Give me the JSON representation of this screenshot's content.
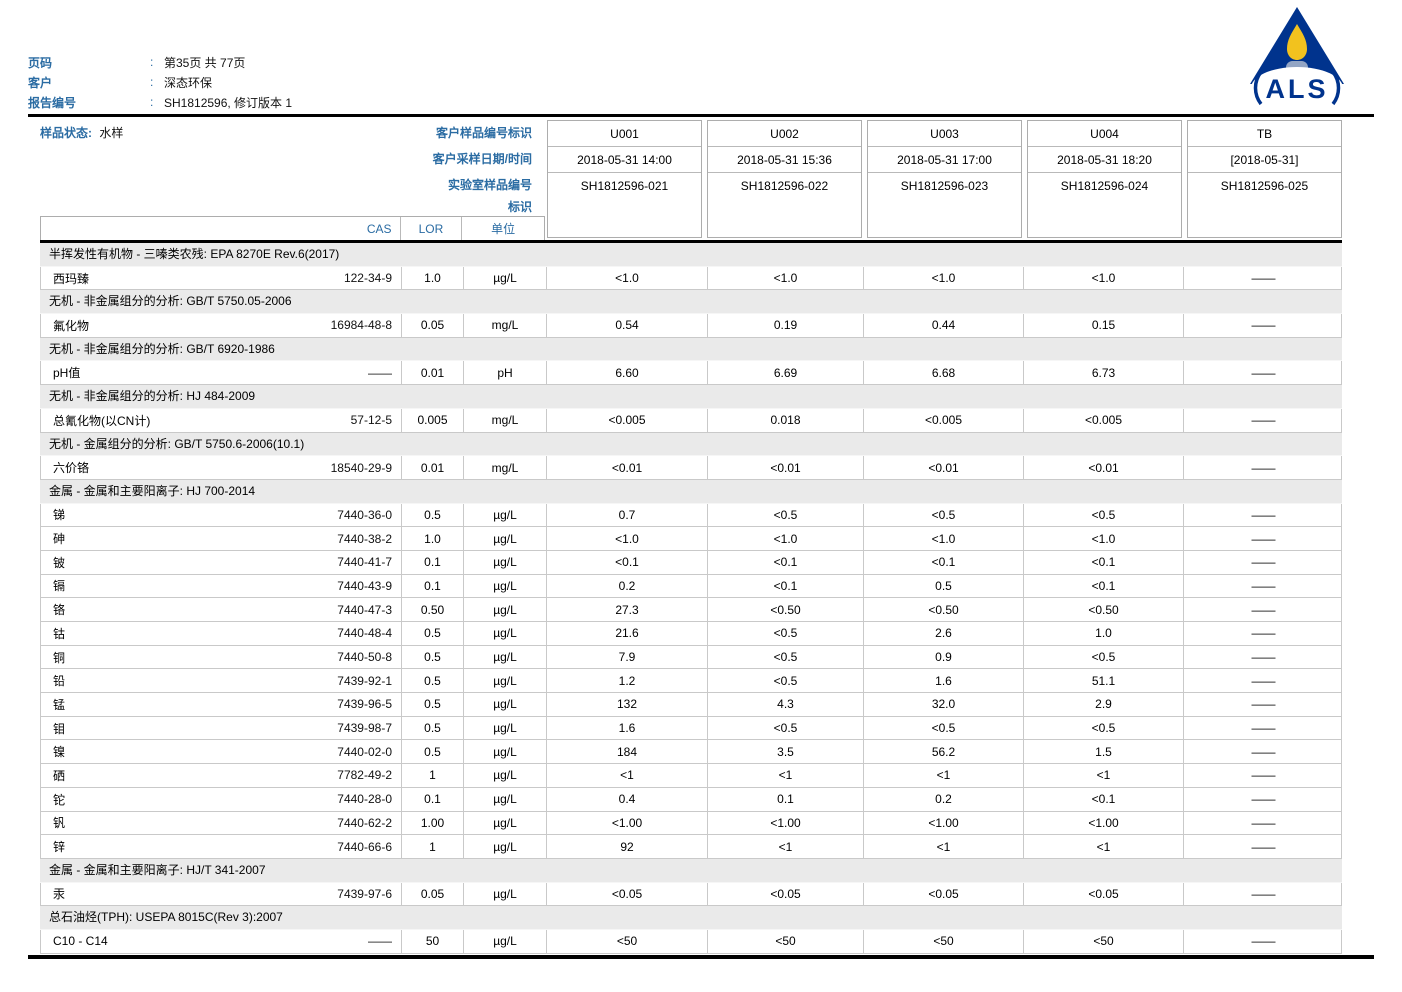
{
  "page_header": {
    "colon": ":",
    "rows": [
      {
        "label": "页码",
        "value": "第35页 共 77页"
      },
      {
        "label": "客户",
        "value": "深态环保"
      },
      {
        "label": "报告编号",
        "value": "SH1812596, 修订版本 1"
      }
    ],
    "logo_text": "ALS"
  },
  "sample_header": {
    "status_label": "样品状态:",
    "status_value": "水样",
    "row_labels": [
      "客户样品编号标识",
      "客户采样日期/时间",
      "实验室样品编号",
      "标识"
    ],
    "columns": [
      {
        "id": "U001",
        "datetime": "2018-05-31 14:00",
        "lab_id": "SH1812596-021"
      },
      {
        "id": "U002",
        "datetime": "2018-05-31 15:36",
        "lab_id": "SH1812596-022"
      },
      {
        "id": "U003",
        "datetime": "2018-05-31 17:00",
        "lab_id": "SH1812596-023"
      },
      {
        "id": "U004",
        "datetime": "2018-05-31 18:20",
        "lab_id": "SH1812596-024"
      },
      {
        "id": "TB",
        "datetime": "[2018-05-31]",
        "lab_id": "SH1812596-025"
      }
    ],
    "col_headers": {
      "cas": "CAS",
      "lor": "LOR",
      "unit": "单位"
    }
  },
  "results": {
    "sections": [
      {
        "title": "半挥发性有机物 - 三嗪类农残: EPA 8270E Rev.6(2017)",
        "rows": [
          {
            "name": "西玛臻",
            "cas": "122-34-9",
            "lor": "1.0",
            "unit": "µg/L",
            "values": [
              "<1.0",
              "<1.0",
              "<1.0",
              "<1.0",
              "——"
            ]
          }
        ]
      },
      {
        "title": "无机 - 非金属组分的分析: GB/T 5750.05-2006",
        "rows": [
          {
            "name": "氟化物",
            "cas": "16984-48-8",
            "lor": "0.05",
            "unit": "mg/L",
            "values": [
              "0.54",
              "0.19",
              "0.44",
              "0.15",
              "——"
            ]
          }
        ]
      },
      {
        "title": "无机 - 非金属组分的分析: GB/T 6920-1986",
        "rows": [
          {
            "name": "pH值",
            "cas": "——",
            "lor": "0.01",
            "unit": "pH",
            "values": [
              "6.60",
              "6.69",
              "6.68",
              "6.73",
              "——"
            ]
          }
        ]
      },
      {
        "title": "无机 - 非金属组分的分析: HJ 484-2009",
        "rows": [
          {
            "name": "总氰化物(以CN计)",
            "cas": "57-12-5",
            "lor": "0.005",
            "unit": "mg/L",
            "values": [
              "<0.005",
              "0.018",
              "<0.005",
              "<0.005",
              "——"
            ]
          }
        ]
      },
      {
        "title": "无机 - 金属组分的分析: GB/T 5750.6-2006(10.1)",
        "rows": [
          {
            "name": "六价铬",
            "cas": "18540-29-9",
            "lor": "0.01",
            "unit": "mg/L",
            "values": [
              "<0.01",
              "<0.01",
              "<0.01",
              "<0.01",
              "——"
            ]
          }
        ]
      },
      {
        "title": "金属 - 金属和主要阳离子: HJ 700-2014",
        "rows": [
          {
            "name": "锑",
            "cas": "7440-36-0",
            "lor": "0.5",
            "unit": "µg/L",
            "values": [
              "0.7",
              "<0.5",
              "<0.5",
              "<0.5",
              "——"
            ]
          },
          {
            "name": "砷",
            "cas": "7440-38-2",
            "lor": "1.0",
            "unit": "µg/L",
            "values": [
              "<1.0",
              "<1.0",
              "<1.0",
              "<1.0",
              "——"
            ]
          },
          {
            "name": "铍",
            "cas": "7440-41-7",
            "lor": "0.1",
            "unit": "µg/L",
            "values": [
              "<0.1",
              "<0.1",
              "<0.1",
              "<0.1",
              "——"
            ]
          },
          {
            "name": "镉",
            "cas": "7440-43-9",
            "lor": "0.1",
            "unit": "µg/L",
            "values": [
              "0.2",
              "<0.1",
              "0.5",
              "<0.1",
              "——"
            ]
          },
          {
            "name": "铬",
            "cas": "7440-47-3",
            "lor": "0.50",
            "unit": "µg/L",
            "values": [
              "27.3",
              "<0.50",
              "<0.50",
              "<0.50",
              "——"
            ]
          },
          {
            "name": "钴",
            "cas": "7440-48-4",
            "lor": "0.5",
            "unit": "µg/L",
            "values": [
              "21.6",
              "<0.5",
              "2.6",
              "1.0",
              "——"
            ]
          },
          {
            "name": "铜",
            "cas": "7440-50-8",
            "lor": "0.5",
            "unit": "µg/L",
            "values": [
              "7.9",
              "<0.5",
              "0.9",
              "<0.5",
              "——"
            ]
          },
          {
            "name": "铅",
            "cas": "7439-92-1",
            "lor": "0.5",
            "unit": "µg/L",
            "values": [
              "1.2",
              "<0.5",
              "1.6",
              "51.1",
              "——"
            ]
          },
          {
            "name": "锰",
            "cas": "7439-96-5",
            "lor": "0.5",
            "unit": "µg/L",
            "values": [
              "132",
              "4.3",
              "32.0",
              "2.9",
              "——"
            ]
          },
          {
            "name": "钼",
            "cas": "7439-98-7",
            "lor": "0.5",
            "unit": "µg/L",
            "values": [
              "1.6",
              "<0.5",
              "<0.5",
              "<0.5",
              "——"
            ]
          },
          {
            "name": "镍",
            "cas": "7440-02-0",
            "lor": "0.5",
            "unit": "µg/L",
            "values": [
              "184",
              "3.5",
              "56.2",
              "1.5",
              "——"
            ]
          },
          {
            "name": "硒",
            "cas": "7782-49-2",
            "lor": "1",
            "unit": "µg/L",
            "values": [
              "<1",
              "<1",
              "<1",
              "<1",
              "——"
            ]
          },
          {
            "name": "铊",
            "cas": "7440-28-0",
            "lor": "0.1",
            "unit": "µg/L",
            "values": [
              "0.4",
              "0.1",
              "0.2",
              "<0.1",
              "——"
            ]
          },
          {
            "name": "钒",
            "cas": "7440-62-2",
            "lor": "1.00",
            "unit": "µg/L",
            "values": [
              "<1.00",
              "<1.00",
              "<1.00",
              "<1.00",
              "——"
            ]
          },
          {
            "name": "锌",
            "cas": "7440-66-6",
            "lor": "1",
            "unit": "µg/L",
            "values": [
              "92",
              "<1",
              "<1",
              "<1",
              "——"
            ]
          }
        ]
      },
      {
        "title": "金属 - 金属和主要阳离子: HJ/T 341-2007",
        "rows": [
          {
            "name": "汞",
            "cas": "7439-97-6",
            "lor": "0.05",
            "unit": "µg/L",
            "values": [
              "<0.05",
              "<0.05",
              "<0.05",
              "<0.05",
              "——"
            ]
          }
        ]
      },
      {
        "title": "总石油烃(TPH): USEPA 8015C(Rev 3):2007",
        "rows": [
          {
            "name": "C10 - C14",
            "cas": "——",
            "lor": "50",
            "unit": "µg/L",
            "values": [
              "<50",
              "<50",
              "<50",
              "<50",
              "——"
            ]
          }
        ]
      }
    ]
  },
  "colors": {
    "label_blue": "#2b6ca3",
    "logo_navy": "#00338d",
    "flame_yellow": "#f2c21e",
    "candle_gray": "#93a5c4",
    "section_bg": "#eaeaea",
    "border_gray": "#c9c9c9",
    "rule_black": "#000000"
  }
}
